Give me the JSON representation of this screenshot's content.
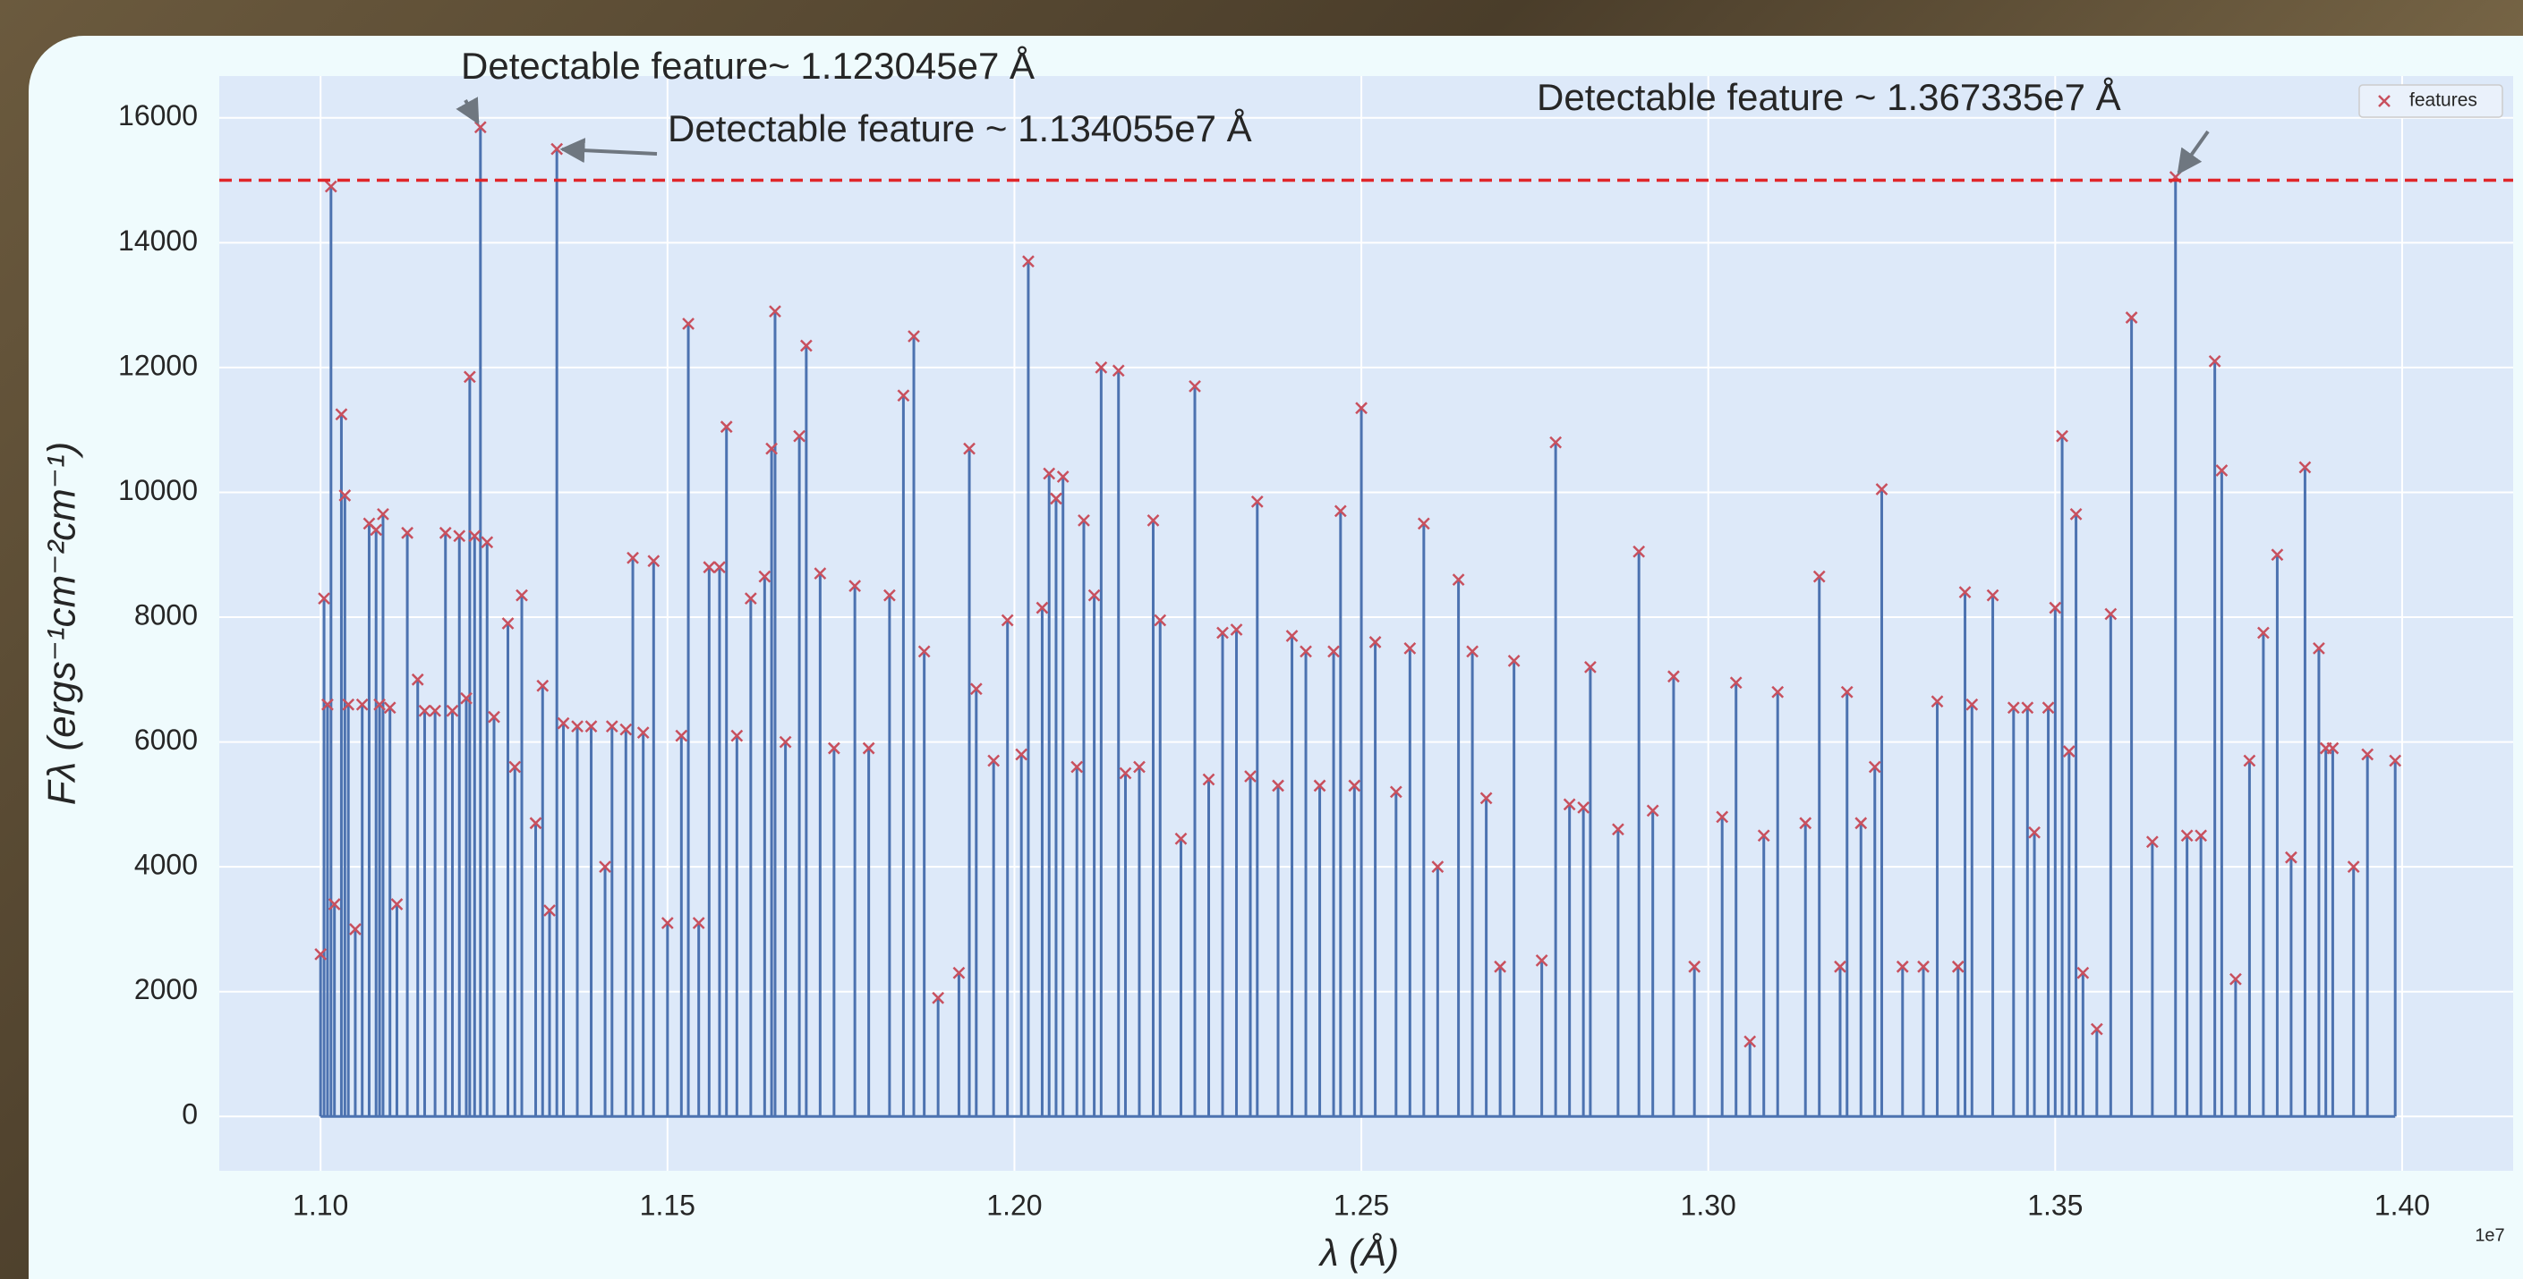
{
  "chart_data": {
    "type": "stem",
    "xlabel": "λ (Å)",
    "ylabel": "Fλ (ergs⁻¹cm⁻²cm⁻¹)",
    "x_offset_label": "1e7",
    "xlim": [
      1.0854,
      1.416
    ],
    "ylim": [
      -870,
      16670
    ],
    "xticks": [
      {
        "value": 1.1,
        "label": "1.10"
      },
      {
        "value": 1.15,
        "label": "1.15"
      },
      {
        "value": 1.2,
        "label": "1.20"
      },
      {
        "value": 1.25,
        "label": "1.25"
      },
      {
        "value": 1.3,
        "label": "1.30"
      },
      {
        "value": 1.35,
        "label": "1.35"
      },
      {
        "value": 1.4,
        "label": "1.40"
      }
    ],
    "yticks": [
      0,
      2000,
      4000,
      6000,
      8000,
      10000,
      12000,
      14000,
      16000
    ],
    "grid": true,
    "line_color": "#4c72b0",
    "legend": "upper right",
    "hline": {
      "y": 15000,
      "color": "#e0262a",
      "style": "dashed"
    },
    "x": [
      1.1,
      1.1005,
      1.101,
      1.1015,
      1.102,
      1.103,
      1.1035,
      1.104,
      1.105,
      1.106,
      1.107,
      1.108,
      1.1085,
      1.109,
      1.11,
      1.111,
      1.1125,
      1.114,
      1.115,
      1.1165,
      1.118,
      1.119,
      1.12,
      1.121,
      1.1215,
      1.1222,
      1.12304,
      1.124,
      1.125,
      1.127,
      1.128,
      1.129,
      1.131,
      1.132,
      1.133,
      1.13405,
      1.135,
      1.137,
      1.139,
      1.141,
      1.142,
      1.144,
      1.145,
      1.1465,
      1.148,
      1.15,
      1.152,
      1.153,
      1.1545,
      1.156,
      1.1575,
      1.1585,
      1.16,
      1.162,
      1.164,
      1.165,
      1.1655,
      1.167,
      1.169,
      1.17,
      1.172,
      1.174,
      1.177,
      1.179,
      1.182,
      1.184,
      1.1855,
      1.187,
      1.189,
      1.192,
      1.1935,
      1.1945,
      1.197,
      1.199,
      1.201,
      1.202,
      1.204,
      1.205,
      1.206,
      1.207,
      1.209,
      1.21,
      1.2115,
      1.2125,
      1.215,
      1.216,
      1.218,
      1.22,
      1.221,
      1.224,
      1.226,
      1.228,
      1.23,
      1.232,
      1.234,
      1.235,
      1.238,
      1.24,
      1.242,
      1.244,
      1.246,
      1.247,
      1.249,
      1.25,
      1.252,
      1.255,
      1.257,
      1.259,
      1.261,
      1.264,
      1.266,
      1.268,
      1.27,
      1.272,
      1.276,
      1.278,
      1.28,
      1.282,
      1.283,
      1.287,
      1.29,
      1.292,
      1.295,
      1.298,
      1.302,
      1.304,
      1.306,
      1.308,
      1.31,
      1.314,
      1.316,
      1.319,
      1.32,
      1.322,
      1.324,
      1.325,
      1.328,
      1.331,
      1.333,
      1.336,
      1.337,
      1.338,
      1.341,
      1.344,
      1.346,
      1.347,
      1.349,
      1.35,
      1.351,
      1.352,
      1.353,
      1.354,
      1.356,
      1.358,
      1.361,
      1.364,
      1.36734,
      1.369,
      1.371,
      1.373,
      1.374,
      1.376,
      1.378,
      1.38,
      1.382,
      1.384,
      1.386,
      1.388,
      1.389,
      1.39,
      1.393,
      1.395,
      1.399
    ],
    "series": [
      {
        "name": "features",
        "color": "#c8505e",
        "marker": "x",
        "values": [
          2600,
          8300,
          6600,
          14900,
          3400,
          11250,
          9950,
          6600,
          3000,
          6600,
          9500,
          9400,
          6600,
          9650,
          6550,
          3400,
          9350,
          7000,
          6500,
          6500,
          9350,
          6500,
          9300,
          6700,
          11850,
          9300,
          15850,
          9200,
          6400,
          7900,
          5600,
          8350,
          4700,
          6900,
          3300,
          15500,
          6300,
          6250,
          6250,
          4000,
          6250,
          6200,
          8950,
          6150,
          8900,
          3100,
          6100,
          12700,
          3100,
          8800,
          8800,
          11050,
          6100,
          8300,
          8650,
          10700,
          12900,
          6000,
          10900,
          12350,
          8700,
          5900,
          8500,
          5900,
          8350,
          11550,
          12500,
          7450,
          1900,
          2300,
          10700,
          6850,
          5700,
          7950,
          5800,
          13700,
          8150,
          10300,
          9900,
          10250,
          5600,
          9550,
          8350,
          12000,
          11950,
          5500,
          5600,
          9550,
          7950,
          4450,
          11700,
          5400,
          7750,
          7800,
          5450,
          9850,
          5300,
          7700,
          7450,
          5300,
          7450,
          9700,
          5300,
          11350,
          7600,
          5200,
          7500,
          9500,
          4000,
          8600,
          7450,
          5100,
          2400,
          7300,
          2500,
          10800,
          5000,
          4950,
          7200,
          4600,
          9050,
          4900,
          7050,
          2400,
          4800,
          6950,
          1200,
          4500,
          6800,
          4700,
          8650,
          2400,
          6800,
          4700,
          5600,
          10050,
          2400,
          2400,
          6650,
          2400,
          8400,
          6600,
          8350,
          6550,
          6550,
          4550,
          6550,
          8150,
          10900,
          5850,
          9650,
          2300,
          1400,
          8050,
          12800,
          4400,
          15050,
          4500,
          4500,
          12100,
          10350,
          2200,
          5700,
          7750,
          9000,
          4150,
          10400,
          7500,
          5900,
          5900,
          4000,
          5800,
          5700
        ]
      }
    ],
    "annotations": [
      {
        "text": "Detectable feature~ 1.123045e7 Å",
        "xy": [
          1.123045,
          15850
        ]
      },
      {
        "text": "Detectable feature ~ 1.134055e7 Å",
        "xy": [
          1.134055,
          15500
        ]
      },
      {
        "text": "Detectable feature ~ 1.367335e7 Å",
        "xy": [
          1.367335,
          15050
        ]
      }
    ]
  }
}
